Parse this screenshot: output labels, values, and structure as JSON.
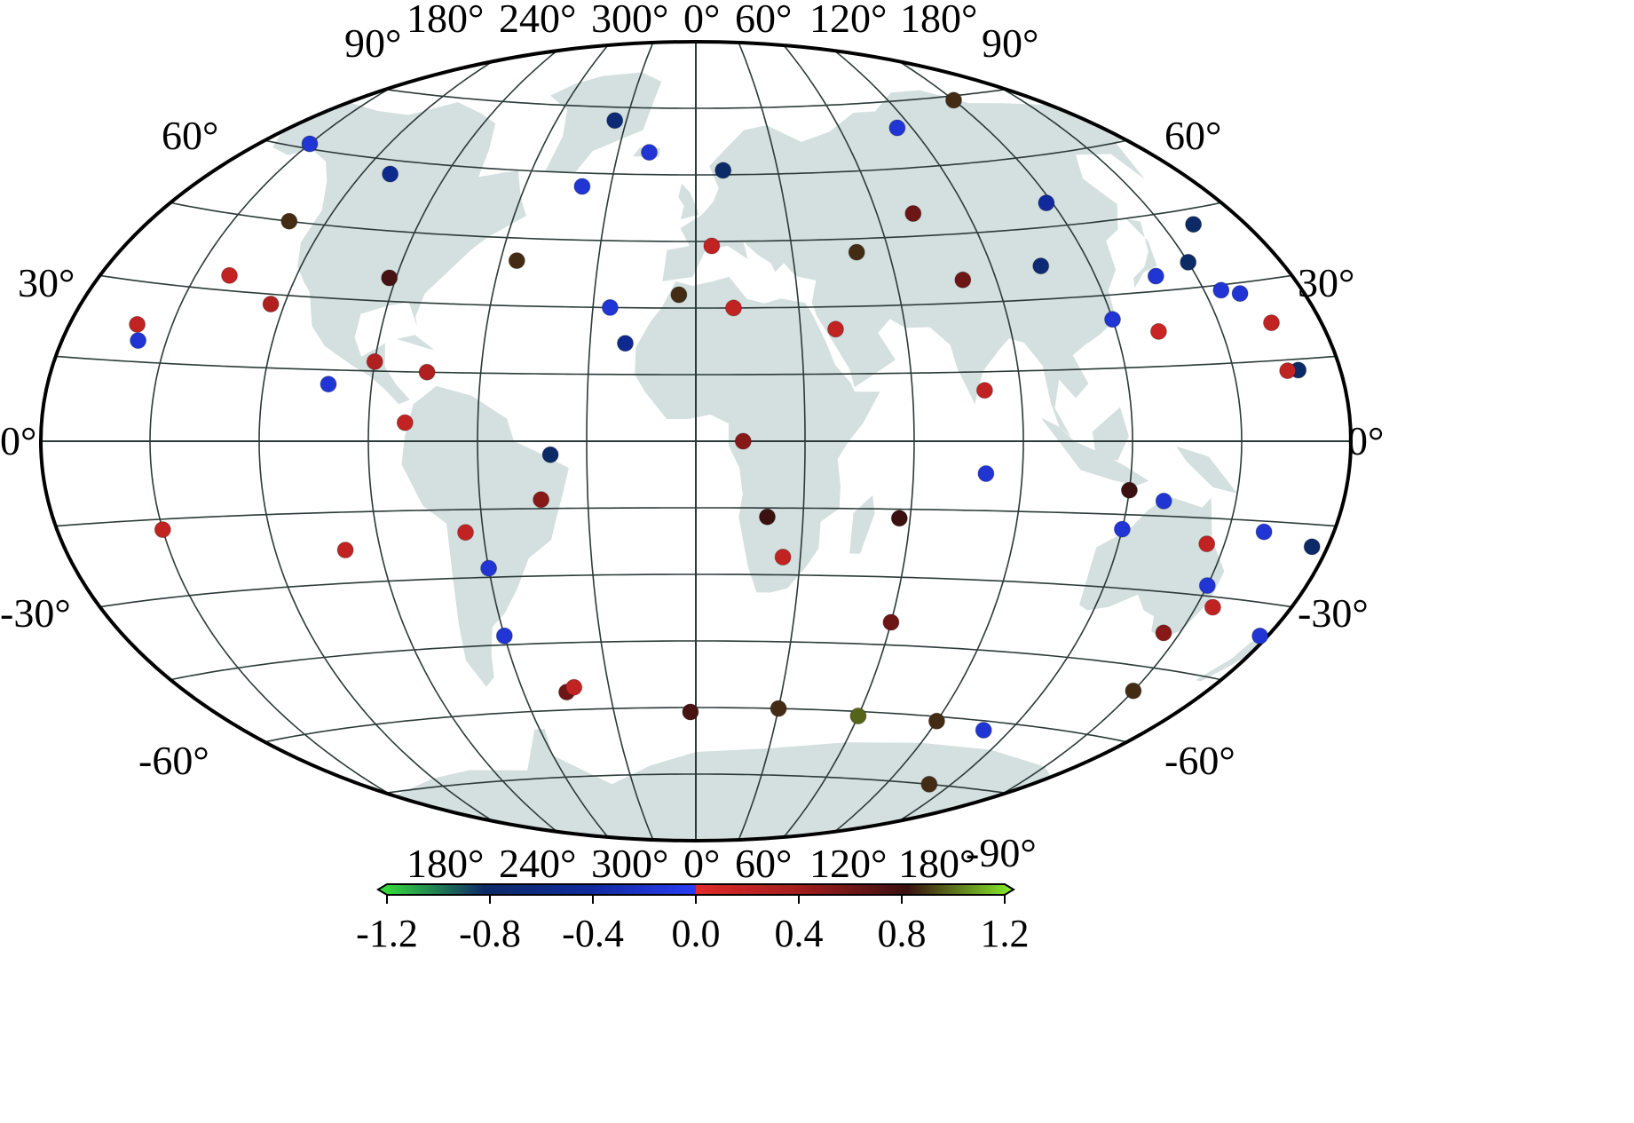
{
  "map": {
    "projection": "Winkel-Tripel-like elliptical world projection",
    "land_color": "#d3e0df",
    "graticule_color": "#2b3a38",
    "border_color": "#000000",
    "left_lat_labels": [
      {
        "lat": 90,
        "text": "90°"
      },
      {
        "lat": 60,
        "text": "60°"
      },
      {
        "lat": 30,
        "text": "30°"
      },
      {
        "lat": 0,
        "text": "0°"
      },
      {
        "lat": -30,
        "text": "-30°"
      },
      {
        "lat": -60,
        "text": "-60°"
      }
    ],
    "right_lat_labels": [
      {
        "lat": 90,
        "text": "90°"
      },
      {
        "lat": 60,
        "text": "60°"
      },
      {
        "lat": 30,
        "text": "30°"
      },
      {
        "lat": 0,
        "text": "0°"
      },
      {
        "lat": -30,
        "text": "-30°"
      },
      {
        "lat": -60,
        "text": "-60°"
      },
      {
        "lat": -90,
        "text": "-90°"
      }
    ],
    "top_lon_labels": [
      "180°",
      "240°",
      "300°",
      "0°",
      "60°",
      "120°",
      "180°"
    ],
    "bottom_lon_labels": [
      "180°",
      "240°",
      "300°",
      "0°",
      "60°",
      "120°",
      "180°"
    ]
  },
  "colorbar": {
    "ticks": [
      "-1.2",
      "-0.8",
      "-0.4",
      "0.0",
      "0.4",
      "0.8",
      "1.2"
    ],
    "tick_values": [
      -1.2,
      -0.8,
      -0.4,
      0.0,
      0.4,
      0.8,
      1.2
    ],
    "range": [
      -1.2,
      1.2
    ],
    "stops": [
      {
        "value": -1.2,
        "color": "#39e639"
      },
      {
        "value": -0.8,
        "color": "#0c2a66"
      },
      {
        "value": -0.4,
        "color": "#102a9c"
      },
      {
        "value": 0.0,
        "color": "#2a3cf5"
      },
      {
        "value": 0.0001,
        "color": "#e12a2a"
      },
      {
        "value": 0.4,
        "color": "#a01c1c"
      },
      {
        "value": 0.8,
        "color": "#3a1010"
      },
      {
        "value": 1.2,
        "color": "#86f02a"
      }
    ]
  },
  "chart_data": {
    "type": "scatter",
    "x_unit": "longitude (degrees east)",
    "y_unit": "latitude (degrees)",
    "color_value_range": [
      -1.2,
      1.2
    ],
    "points": [
      {
        "lon": -35,
        "lat": 72,
        "v": -0.7
      },
      {
        "lon": 10,
        "lat": 61,
        "v": -0.8
      },
      {
        "lon": -150,
        "lat": 61,
        "v": -0.15
      },
      {
        "lon": -110,
        "lat": 57,
        "v": -0.5
      },
      {
        "lon": -40,
        "lat": 57,
        "v": -0.15
      },
      {
        "lon": -18,
        "lat": 65,
        "v": -0.15
      },
      {
        "lon": 84,
        "lat": 69,
        "v": -0.15
      },
      {
        "lon": 120,
        "lat": 74,
        "v": 0.85
      },
      {
        "lon": -132,
        "lat": 45,
        "v": 0.85
      },
      {
        "lon": -55,
        "lat": 40,
        "v": 0.85
      },
      {
        "lon": -92,
        "lat": 35,
        "v": 0.75
      },
      {
        "lon": -140,
        "lat": 33,
        "v": 0.2
      },
      {
        "lon": -124,
        "lat": 28,
        "v": 0.3
      },
      {
        "lon": 5,
        "lat": 44,
        "v": 0.2
      },
      {
        "lon": -5,
        "lat": 33,
        "v": 0.85
      },
      {
        "lon": 11,
        "lat": 30,
        "v": 0.2
      },
      {
        "lon": 50,
        "lat": 42,
        "v": 0.85
      },
      {
        "lon": 72,
        "lat": 50,
        "v": 0.6
      },
      {
        "lon": 80,
        "lat": 35,
        "v": 0.6
      },
      {
        "lon": 118,
        "lat": 50,
        "v": -0.4
      },
      {
        "lon": 105,
        "lat": 37,
        "v": -0.7
      },
      {
        "lon": 160,
        "lat": 42,
        "v": -0.8
      },
      {
        "lon": 150,
        "lat": 35,
        "v": -0.8
      },
      {
        "lon": 120,
        "lat": 25,
        "v": -0.15
      },
      {
        "lon": 138,
        "lat": 33,
        "v": -0.15
      },
      {
        "lon": 155,
        "lat": 29,
        "v": -0.15
      },
      {
        "lon": 160,
        "lat": 28,
        "v": -0.15
      },
      {
        "lon": 165,
        "lat": 22,
        "v": 0.2
      },
      {
        "lon": 132,
        "lat": 22,
        "v": 0.15
      },
      {
        "lon": 168,
        "lat": 13,
        "v": -0.8
      },
      {
        "lon": -20,
        "lat": 22,
        "v": -0.5
      },
      {
        "lon": -25,
        "lat": 30,
        "v": -0.15
      },
      {
        "lon": 40,
        "lat": 25,
        "v": 0.2
      },
      {
        "lon": -160,
        "lat": 22,
        "v": 0.2
      },
      {
        "lon": -158,
        "lat": 19,
        "v": -0.15
      },
      {
        "lon": -90,
        "lat": 17,
        "v": 0.3
      },
      {
        "lon": -75,
        "lat": 15,
        "v": 0.3
      },
      {
        "lon": -102,
        "lat": 12,
        "v": -0.15
      },
      {
        "lon": 80,
        "lat": 11,
        "v": 0.2
      },
      {
        "lon": -195,
        "lat": 13,
        "v": 0.2
      },
      {
        "lon": -80,
        "lat": 4,
        "v": 0.2
      },
      {
        "lon": 13,
        "lat": 0,
        "v": 0.5
      },
      {
        "lon": -40,
        "lat": -3,
        "v": -0.8
      },
      {
        "lon": 80,
        "lat": -7,
        "v": -0.15
      },
      {
        "lon": 120,
        "lat": -10,
        "v": 0.8
      },
      {
        "lon": -43,
        "lat": -13,
        "v": 0.5
      },
      {
        "lon": -65,
        "lat": -20,
        "v": 0.2
      },
      {
        "lon": 20,
        "lat": -17,
        "v": 0.8
      },
      {
        "lon": 57,
        "lat": -17,
        "v": 0.8
      },
      {
        "lon": 25,
        "lat": -26,
        "v": 0.2
      },
      {
        "lon": -60,
        "lat": -28,
        "v": -0.15
      },
      {
        "lon": -100,
        "lat": -23,
        "v": 0.2
      },
      {
        "lon": -150,
        "lat": -17,
        "v": 0.2
      },
      {
        "lon": 120,
        "lat": -18,
        "v": -0.15
      },
      {
        "lon": 130,
        "lat": -12,
        "v": -0.15
      },
      {
        "lon": 145,
        "lat": -20,
        "v": 0.2
      },
      {
        "lon": 150,
        "lat": -28,
        "v": -0.15
      },
      {
        "lon": 155,
        "lat": -32,
        "v": 0.2
      },
      {
        "lon": 160,
        "lat": -17,
        "v": -0.15
      },
      {
        "lon": 175,
        "lat": -19,
        "v": -0.8
      },
      {
        "lon": 145,
        "lat": -38,
        "v": 0.5
      },
      {
        "lon": 175,
        "lat": -36,
        "v": -0.15
      },
      {
        "lon": 60,
        "lat": -40,
        "v": 0.6
      },
      {
        "lon": 150,
        "lat": -50,
        "v": 0.85
      },
      {
        "lon": -60,
        "lat": -43,
        "v": -0.15
      },
      {
        "lon": -45,
        "lat": -56,
        "v": 0.6
      },
      {
        "lon": -42,
        "lat": -55,
        "v": 0.2
      },
      {
        "lon": -2,
        "lat": -61,
        "v": 0.75
      },
      {
        "lon": 30,
        "lat": -60,
        "v": 0.85
      },
      {
        "lon": 60,
        "lat": -61,
        "v": 0.95
      },
      {
        "lon": 90,
        "lat": -61,
        "v": 0.85
      },
      {
        "lon": 110,
        "lat": -62,
        "v": -0.15
      },
      {
        "lon": 110,
        "lat": -75,
        "v": 0.85
      }
    ]
  }
}
